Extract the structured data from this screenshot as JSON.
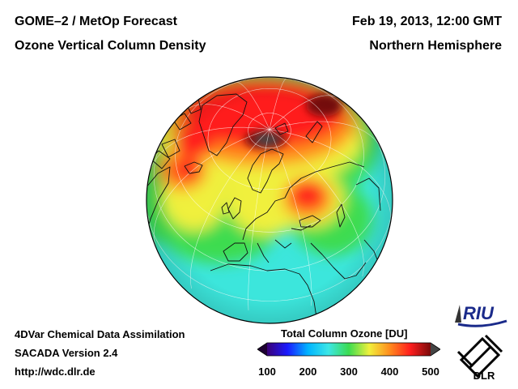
{
  "header": {
    "title_left_1": "GOME–2 / MetOp Forecast",
    "title_left_2": "Ozone Vertical Column Density",
    "title_right_1": "Feb 19, 2013, 12:00 GMT",
    "title_right_2": "Northern Hemisphere"
  },
  "footer": {
    "line1": "4DVar Chemical Data Assimilation",
    "line2": "SACADA Version 2.4",
    "line3": "http://wdc.dlr.de"
  },
  "colorbar": {
    "title": "Total Column Ozone [DU]",
    "min": 100,
    "max": 500,
    "ticks": [
      "100",
      "200",
      "300",
      "400",
      "500"
    ],
    "stops": [
      {
        "value": 100,
        "color": "#3a0078"
      },
      {
        "value": 150,
        "color": "#1a1aff"
      },
      {
        "value": 200,
        "color": "#00b4ff"
      },
      {
        "value": 250,
        "color": "#3ce6e6"
      },
      {
        "value": 300,
        "color": "#3cdc50"
      },
      {
        "value": 350,
        "color": "#f0f03c"
      },
      {
        "value": 400,
        "color": "#ff8c1e"
      },
      {
        "value": 450,
        "color": "#ff1e1e"
      },
      {
        "value": 500,
        "color": "#7a0a0a"
      }
    ],
    "under_color": "#1e0032",
    "over_color": "#444444"
  },
  "logos": {
    "riu": "RIU",
    "dlr": "DLR"
  },
  "map": {
    "projection": "orthographic",
    "hemisphere": "Northern Hemisphere",
    "ocean_base_color": "#3ce6dc",
    "pole_color": "#3a3a3a"
  }
}
